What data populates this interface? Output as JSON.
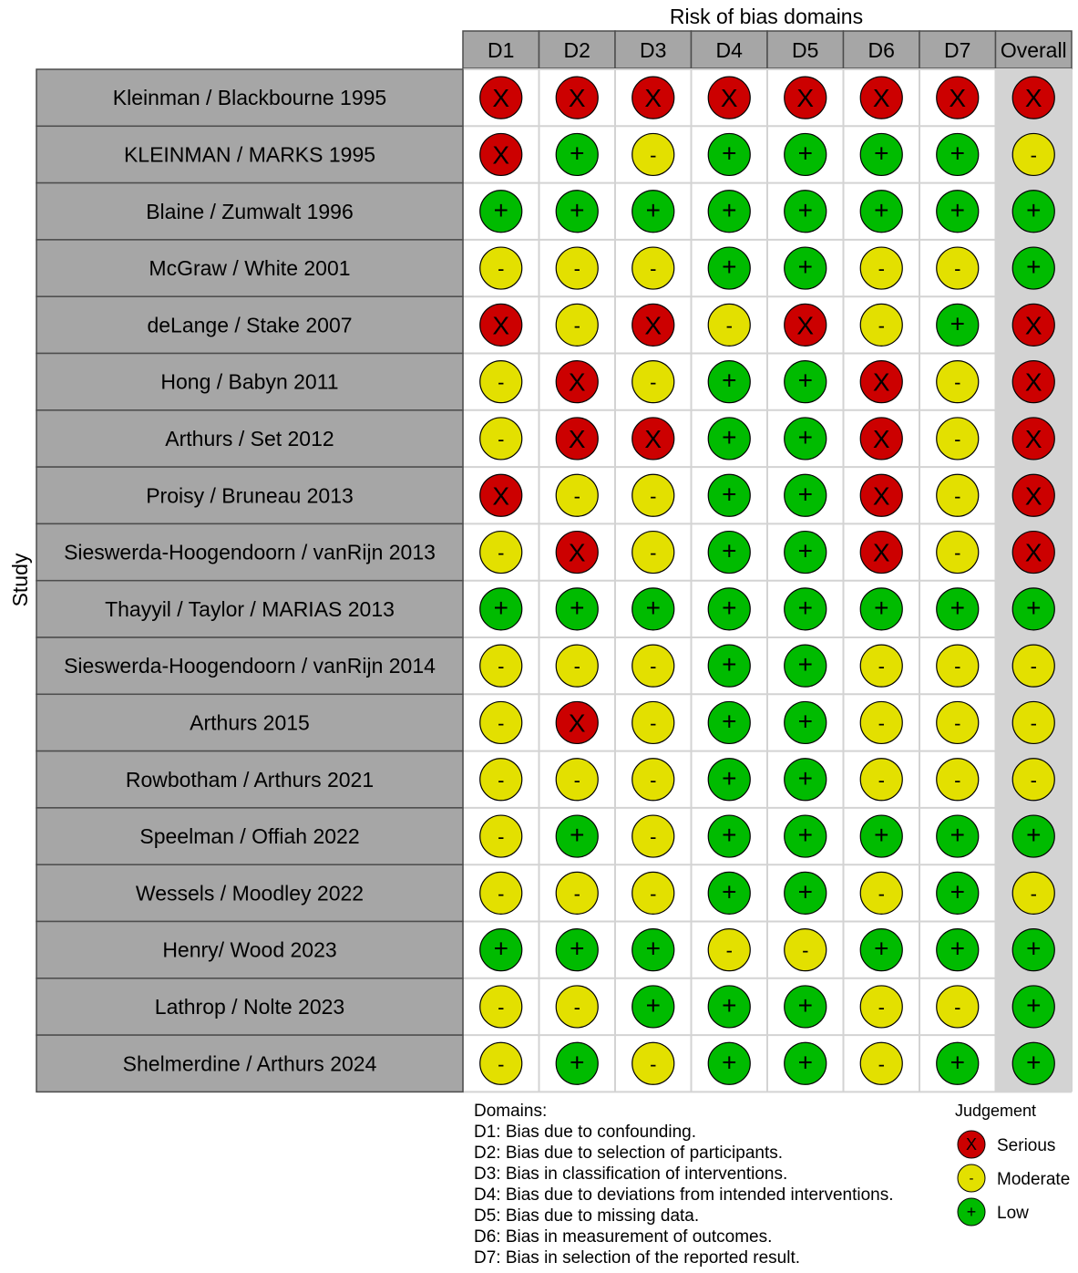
{
  "chart_data": {
    "type": "table",
    "title": "Risk of bias domains",
    "ylabel": "Study",
    "columns": [
      "D1",
      "D2",
      "D3",
      "D4",
      "D5",
      "D6",
      "D7",
      "Overall"
    ],
    "rows": [
      {
        "study": "Kleinman / Blackbourne 1995",
        "judgements": [
          "S",
          "S",
          "S",
          "S",
          "S",
          "S",
          "S",
          "S"
        ]
      },
      {
        "study": "KLEINMAN / MARKS 1995",
        "judgements": [
          "S",
          "L",
          "M",
          "L",
          "L",
          "L",
          "L",
          "M"
        ]
      },
      {
        "study": "Blaine / Zumwalt 1996",
        "judgements": [
          "L",
          "L",
          "L",
          "L",
          "L",
          "L",
          "L",
          "L"
        ]
      },
      {
        "study": "McGraw / White 2001",
        "judgements": [
          "M",
          "M",
          "M",
          "L",
          "L",
          "M",
          "M",
          "L"
        ]
      },
      {
        "study": "deLange / Stake 2007",
        "judgements": [
          "S",
          "M",
          "S",
          "M",
          "S",
          "M",
          "L",
          "S"
        ]
      },
      {
        "study": "Hong / Babyn 2011",
        "judgements": [
          "M",
          "S",
          "M",
          "L",
          "L",
          "S",
          "M",
          "S"
        ]
      },
      {
        "study": "Arthurs / Set 2012",
        "judgements": [
          "M",
          "S",
          "S",
          "L",
          "L",
          "S",
          "M",
          "S"
        ]
      },
      {
        "study": "Proisy / Bruneau 2013",
        "judgements": [
          "S",
          "M",
          "M",
          "L",
          "L",
          "S",
          "M",
          "S"
        ]
      },
      {
        "study": "Sieswerda-Hoogendoorn / vanRijn 2013",
        "judgements": [
          "M",
          "S",
          "M",
          "L",
          "L",
          "S",
          "M",
          "S"
        ]
      },
      {
        "study": "Thayyil / Taylor / MARIAS 2013",
        "judgements": [
          "L",
          "L",
          "L",
          "L",
          "L",
          "L",
          "L",
          "L"
        ]
      },
      {
        "study": "Sieswerda-Hoogendoorn / vanRijn 2014",
        "judgements": [
          "M",
          "M",
          "M",
          "L",
          "L",
          "M",
          "M",
          "M"
        ]
      },
      {
        "study": "Arthurs 2015",
        "judgements": [
          "M",
          "S",
          "M",
          "L",
          "L",
          "M",
          "M",
          "M"
        ]
      },
      {
        "study": "Rowbotham / Arthurs 2021",
        "judgements": [
          "M",
          "M",
          "M",
          "L",
          "L",
          "M",
          "M",
          "M"
        ]
      },
      {
        "study": "Speelman / Offiah 2022",
        "judgements": [
          "M",
          "L",
          "M",
          "L",
          "L",
          "L",
          "L",
          "L"
        ]
      },
      {
        "study": "Wessels / Moodley 2022",
        "judgements": [
          "M",
          "M",
          "M",
          "L",
          "L",
          "M",
          "L",
          "M"
        ]
      },
      {
        "study": "Henry/ Wood 2023",
        "judgements": [
          "L",
          "L",
          "L",
          "M",
          "M",
          "L",
          "L",
          "L"
        ]
      },
      {
        "study": "Lathrop / Nolte 2023",
        "judgements": [
          "M",
          "M",
          "L",
          "L",
          "L",
          "M",
          "M",
          "L"
        ]
      },
      {
        "study": "Shelmerdine / Arthurs 2024",
        "judgements": [
          "M",
          "L",
          "M",
          "L",
          "L",
          "M",
          "L",
          "L"
        ]
      }
    ],
    "judgement_levels": {
      "S": {
        "label": "Serious",
        "symbol": "X",
        "color": "#cc0000"
      },
      "M": {
        "label": "Moderate",
        "symbol": "-",
        "color": "#e3e000"
      },
      "L": {
        "label": "Low",
        "symbol": "+",
        "color": "#00bb00"
      }
    },
    "legend": {
      "title": "Judgement",
      "order": [
        "S",
        "M",
        "L"
      ],
      "placement": "bottom-right"
    },
    "domains_note": {
      "title": "Domains:",
      "lines": [
        "D1: Bias due to confounding.",
        "D2: Bias due to selection of participants.",
        "D3: Bias in classification of interventions.",
        "D4: Bias due to deviations from intended interventions.",
        "D5: Bias due to missing data.",
        "D6: Bias in measurement of outcomes.",
        "D7: Bias in selection of the reported result."
      ]
    },
    "colors": {
      "study_cell": "#a6a6a6",
      "header_cell": "#a6a6a6",
      "overall_column": "#d3d3d3",
      "grid": "#d3d3d3",
      "border": "#4d4d4d"
    }
  }
}
